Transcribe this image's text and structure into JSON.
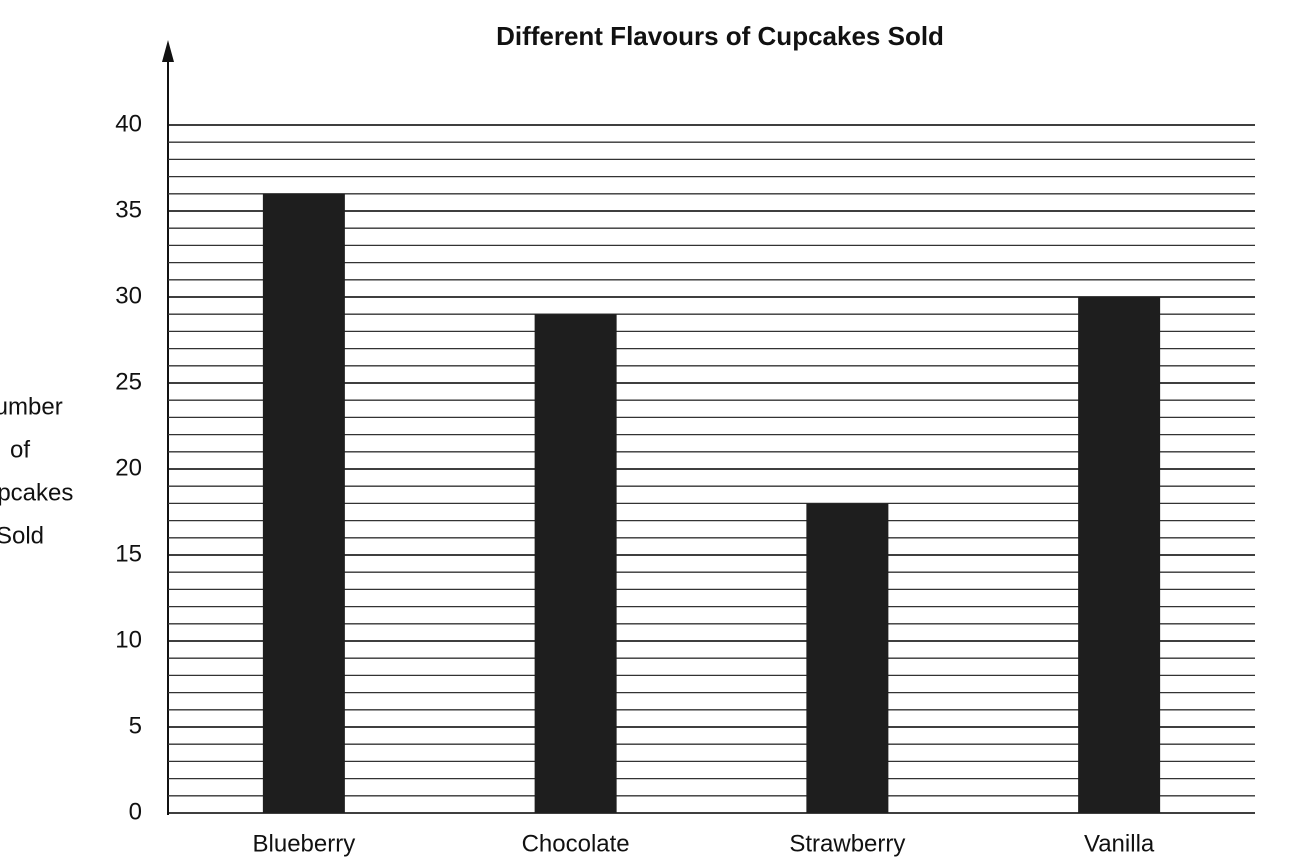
{
  "chart_data": {
    "type": "bar",
    "title": "Different Flavours of Cupcakes Sold",
    "y_label_lines": [
      "Number",
      "of",
      "Cupcakes",
      "Sold"
    ],
    "categories": [
      "Blueberry",
      "Chocolate",
      "Strawberry",
      "Vanilla"
    ],
    "values": [
      36,
      29,
      18,
      30
    ],
    "color": "#1e1e1e",
    "ylim": [
      0,
      40
    ],
    "yticks": [
      0,
      5,
      10,
      15,
      20,
      25,
      30,
      35,
      40
    ],
    "grid": true
  }
}
